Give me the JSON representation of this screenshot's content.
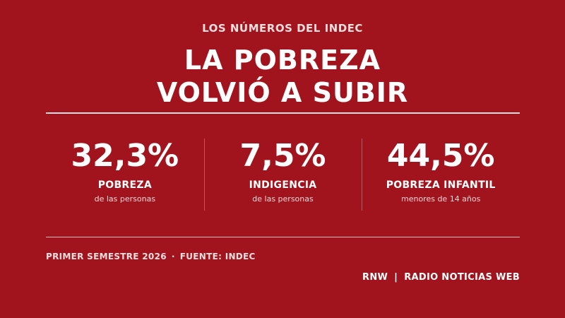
{
  "kicker": "LOS NÚMEROS DEL INDEC",
  "headline": {
    "line1": "LA POBREZA",
    "line2": "VOLVIÓ A SUBIR"
  },
  "stats": [
    {
      "value": "32,3%",
      "label": "POBREZA",
      "sub": "de las personas"
    },
    {
      "value": "7,5%",
      "label": "INDIGENCIA",
      "sub": "de las personas"
    },
    {
      "value": "44,5%",
      "label": "POBREZA INFANTIL",
      "sub": "menores de 14 años"
    }
  ],
  "footer": {
    "period": "PRIMER SEMESTRE 2026",
    "separator": "·",
    "source": "FUENTE: INDEC"
  },
  "brand": {
    "short": "RNW",
    "separator": "|",
    "name": "RADIO NOTICIAS WEB"
  },
  "colors": {
    "background": "#a1141d",
    "text": "#ffffff"
  }
}
